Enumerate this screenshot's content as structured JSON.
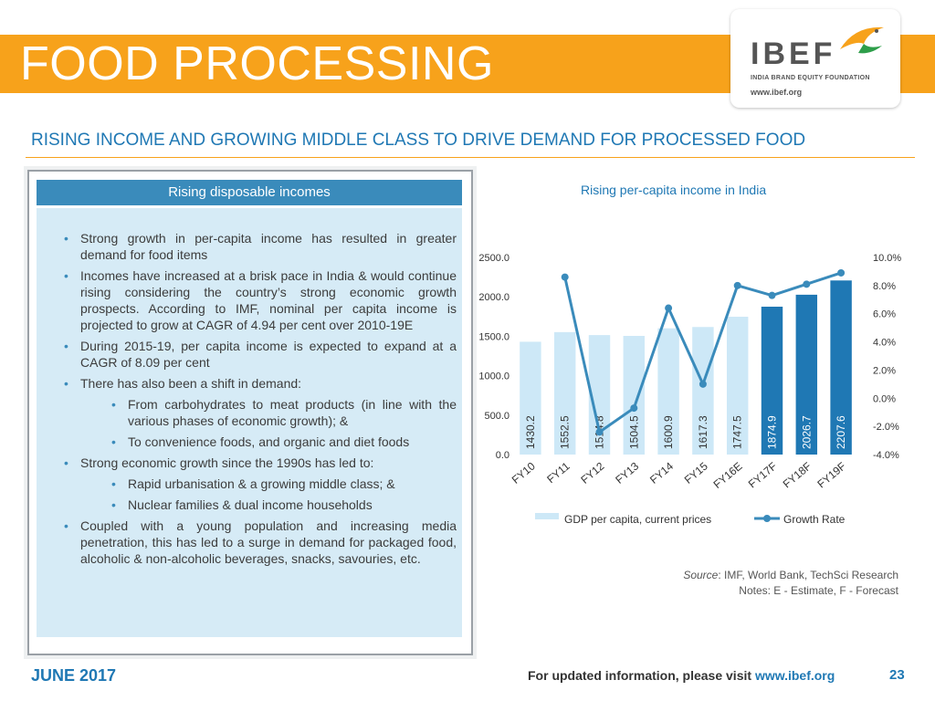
{
  "header": {
    "title": "FOOD PROCESSING",
    "logo_text": "IBEF",
    "logo_subtext": "INDIA BRAND EQUITY FOUNDATION",
    "logo_url": "www.ibef.org"
  },
  "subtitle": "RISING INCOME AND GROWING MIDDLE CLASS TO DRIVE DEMAND FOR PROCESSED FOOD",
  "left_panel": {
    "heading": "Rising disposable incomes",
    "bullets": [
      {
        "level": 1,
        "text": "Strong growth in per-capita income has resulted in greater demand for food items"
      },
      {
        "level": 1,
        "text": "Incomes have increased at a brisk pace in India & would continue rising considering the country’s strong economic growth prospects. According to IMF, nominal per capita income is projected to grow at CAGR of 4.94 per cent over 2010-19E"
      },
      {
        "level": 1,
        "text": "During 2015-19, per capita income is expected to expand at a CAGR of 8.09 per cent"
      },
      {
        "level": 1,
        "text": "There has also been a shift in demand:"
      },
      {
        "level": 2,
        "text": "From carbohydrates to meat products (in line with the various phases of economic growth); &"
      },
      {
        "level": 2,
        "text": "To convenience foods, and organic and diet foods"
      },
      {
        "level": 1,
        "text": "Strong economic growth since the 1990s has led to:"
      },
      {
        "level": 2,
        "text": "Rapid urbanisation & a growing middle class; &"
      },
      {
        "level": 2,
        "text": "Nuclear families & dual income households"
      },
      {
        "level": 1,
        "text": "Coupled with a young population and increasing media penetration, this has led to a surge in demand for packaged food, alcoholic & non-alcoholic beverages, snacks, savouries, etc."
      }
    ]
  },
  "chart_title": "Rising per-capita income in India",
  "chart_data": {
    "type": "bar",
    "title": "Rising per-capita income in India",
    "categories": [
      "FY10",
      "FY11",
      "FY12",
      "FY13",
      "FY14",
      "FY15",
      "FY16E",
      "FY17F",
      "FY18F",
      "FY19F"
    ],
    "series": [
      {
        "name": "GDP per capita, current prices",
        "type": "bar",
        "axis": "left",
        "values": [
          1430.2,
          1552.5,
          1514.8,
          1504.5,
          1600.9,
          1617.3,
          1747.5,
          1874.9,
          2026.7,
          2207.6
        ],
        "labels": [
          "1430.2",
          "1552.5",
          "1514.8",
          "1504.5",
          "1600.9",
          "1617.3",
          "1747.5",
          "1874.9",
          "2026.7",
          "2207.6"
        ]
      },
      {
        "name": "Growth Rate",
        "type": "line",
        "axis": "right",
        "values": [
          null,
          8.6,
          -2.4,
          -0.7,
          6.4,
          1.0,
          8.0,
          7.3,
          8.1,
          8.9
        ]
      }
    ],
    "y_left": {
      "min": 0,
      "max": 2500,
      "ticks": [
        "0.0",
        "500.0",
        "1000.0",
        "1500.0",
        "2000.0",
        "2500.0"
      ]
    },
    "y_right": {
      "min": -4,
      "max": 10,
      "ticks": [
        "-4.0%",
        "-2.0%",
        "0.0%",
        "2.0%",
        "4.0%",
        "6.0%",
        "8.0%",
        "10.0%"
      ]
    },
    "legend_position": "bottom",
    "grid": false
  },
  "colors": {
    "bar_light": "#cde8f7",
    "bar_dark": "#1f78b4",
    "line": "#3a8bbb",
    "accent": "#f7a21b"
  },
  "source": {
    "label": "Source",
    "text": ": IMF, World Bank, TechSci Research",
    "notes": "Notes: E - Estimate, F - Forecast"
  },
  "footer": {
    "date": "JUNE 2017",
    "text": "For updated information, please visit ",
    "url": "www.ibef.org",
    "page": "23"
  }
}
